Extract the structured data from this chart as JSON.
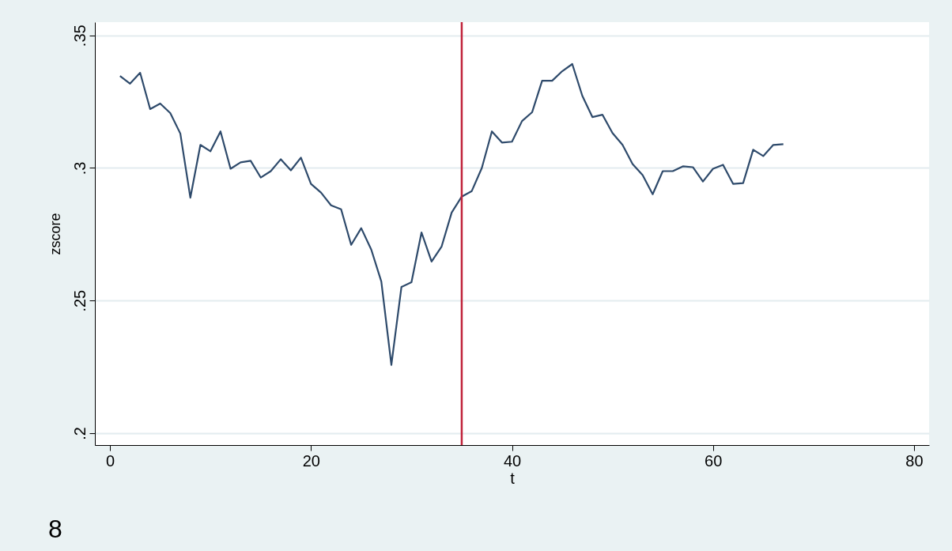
{
  "chart_data": {
    "type": "line",
    "xlabel": "t",
    "ylabel": "zscore",
    "annotations": [
      "8"
    ],
    "x": [
      1,
      2,
      3,
      4,
      5,
      6,
      7,
      8,
      9,
      10,
      11,
      12,
      13,
      14,
      15,
      16,
      17,
      18,
      19,
      20,
      21,
      22,
      23,
      24,
      25,
      26,
      27,
      28,
      29,
      30,
      31,
      32,
      33,
      34,
      35,
      36,
      37,
      38,
      39,
      40,
      41,
      42,
      43,
      44,
      45,
      46,
      47,
      48,
      49,
      50,
      51,
      52,
      53,
      54,
      55,
      56,
      57,
      58,
      59,
      60,
      61,
      62,
      63,
      64,
      65,
      66,
      67
    ],
    "series": [
      {
        "color": "#2e4a6b",
        "values": [
          0.3347,
          0.3318,
          0.3359,
          0.3222,
          0.3243,
          0.3207,
          0.313,
          0.2888,
          0.3087,
          0.3063,
          0.3138,
          0.2997,
          0.3021,
          0.3027,
          0.2964,
          0.2988,
          0.3033,
          0.2991,
          0.3039,
          0.294,
          0.2907,
          0.2859,
          0.2844,
          0.271,
          0.2773,
          0.2692,
          0.2572,
          0.2257,
          0.2551,
          0.2569,
          0.2757,
          0.2647,
          0.2704,
          0.2832,
          0.2892,
          0.2913,
          0.3,
          0.3138,
          0.3096,
          0.3099,
          0.3177,
          0.321,
          0.3329,
          0.3329,
          0.3365,
          0.3392,
          0.3272,
          0.3192,
          0.3201,
          0.3132,
          0.3087,
          0.3015,
          0.2973,
          0.2901,
          0.2988,
          0.2988,
          0.3006,
          0.3003,
          0.2949,
          0.2997,
          0.3012,
          0.294,
          0.2943,
          0.3069,
          0.3045,
          0.3087,
          0.309
        ]
      }
    ],
    "xlim": [
      -1.5,
      81.5
    ],
    "ylim": [
      0.1955,
      0.355
    ],
    "xticks": [
      0,
      20,
      40,
      60,
      80
    ],
    "yticks": [
      {
        "value": 0.2,
        "label": ".2"
      },
      {
        "value": 0.25,
        "label": ".25"
      },
      {
        "value": 0.3,
        "label": ".3"
      },
      {
        "value": 0.35,
        "label": ".35"
      }
    ],
    "grid": "y",
    "ref_lines": [
      {
        "axis": "x",
        "value": 35,
        "color": "#c0223a"
      }
    ]
  }
}
